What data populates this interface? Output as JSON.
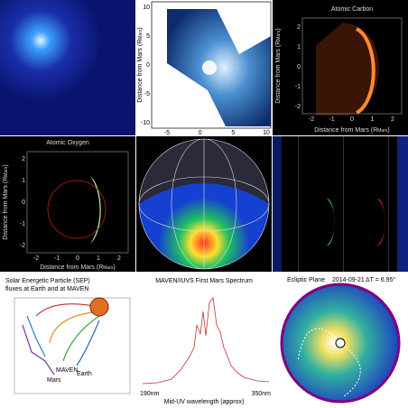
{
  "corona": {
    "yticks": [
      "10",
      "5",
      "0",
      "-5",
      "-10"
    ],
    "xticks": [
      "-5",
      "0",
      "5",
      "10"
    ],
    "ylabel": {
      "main": "Distance from Mars (R",
      "sub": "Mars",
      "close": ")"
    }
  },
  "carbon": {
    "title": "Atomic Carbon",
    "yticks": [
      "2",
      "1",
      "0",
      "-1",
      "-2"
    ],
    "xticks": [
      "-2",
      "-1",
      "0",
      "1",
      "2"
    ],
    "xlabel": {
      "main": "Distance from Mars (R",
      "sub": "Mars",
      "close": ")"
    },
    "ylabel": {
      "main": "Distance from Mars (R",
      "sub": "Mars",
      "close": ")"
    }
  },
  "oxygen": {
    "title": "Atomic Oxygen",
    "yticks": [
      "2",
      "1",
      "0",
      "-1",
      "-2"
    ],
    "xticks": [
      "-2",
      "-1",
      "0",
      "1",
      "2"
    ],
    "xlabel": {
      "main": "Distance from Mars (R",
      "sub": "Mars",
      "close": ")"
    },
    "ylabel": {
      "main": "Distance from Mars (R",
      "sub": "Mars",
      "close": ")"
    }
  },
  "sep": {
    "title_lines": [
      "Solar Energetic Particle (SEP)",
      "fluxes at Earth and at MAVEN"
    ],
    "maven": "MAVEN",
    "earth": "Earth",
    "mars": "Mars"
  },
  "spectrum": {
    "title": "MAVEN/IUVS First Mars Spectrum",
    "x_start": "190nm",
    "x_end": "350nm",
    "xlabel": "Mid-UV wavelength (approx)"
  },
  "enlil": {
    "title": "Ecliptic Plane",
    "date": "2014-09-21",
    "note": "ΔT = 6.95°"
  }
}
